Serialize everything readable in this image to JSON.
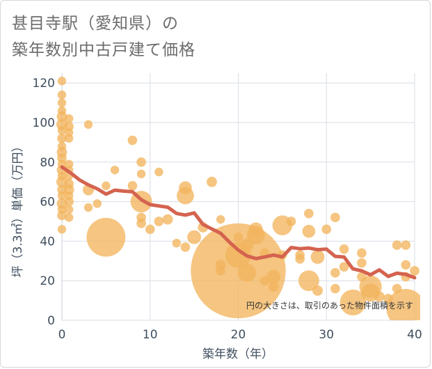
{
  "header": {
    "title_line1": "甚目寺駅（愛知県）の",
    "title_line2": "築年数別中古戸建て価格"
  },
  "note": "円の大きさは、取引のあった物件面積を示す",
  "colors": {
    "bubble": "#f2b55e",
    "trend": "#d4634f",
    "grid": "#d9dde6",
    "axis_text": "#3e4d5e",
    "title": "#6b6b6b"
  },
  "chart_data": {
    "type": "scatter",
    "xlabel": "築年数（年）",
    "ylabel": "坪（3.3㎡）単価（万円）",
    "xlim": [
      0,
      40
    ],
    "ylim": [
      0,
      125
    ],
    "xticks": [
      "0",
      "10",
      "20",
      "30",
      "40"
    ],
    "yticks": [
      "0",
      "20",
      "40",
      "60",
      "80",
      "100",
      "120"
    ],
    "grid": true,
    "points": [
      {
        "x": 0,
        "y": 121,
        "s": 1
      },
      {
        "x": 0,
        "y": 114,
        "s": 1
      },
      {
        "x": 0,
        "y": 110,
        "s": 1
      },
      {
        "x": 0,
        "y": 106,
        "s": 1
      },
      {
        "x": 0,
        "y": 103,
        "s": 1.2
      },
      {
        "x": 0,
        "y": 99,
        "s": 1.3
      },
      {
        "x": 0,
        "y": 96,
        "s": 1
      },
      {
        "x": 0,
        "y": 92,
        "s": 1.1
      },
      {
        "x": 0,
        "y": 88,
        "s": 1
      },
      {
        "x": 0,
        "y": 85,
        "s": 1.2
      },
      {
        "x": 0,
        "y": 82,
        "s": 1.1
      },
      {
        "x": 0,
        "y": 79,
        "s": 1
      },
      {
        "x": 0,
        "y": 76,
        "s": 1.2
      },
      {
        "x": 0,
        "y": 73,
        "s": 1
      },
      {
        "x": 0,
        "y": 70,
        "s": 1.3
      },
      {
        "x": 0,
        "y": 66,
        "s": 1.1
      },
      {
        "x": 0,
        "y": 63,
        "s": 1
      },
      {
        "x": 0,
        "y": 59,
        "s": 1.2
      },
      {
        "x": 0,
        "y": 56,
        "s": 1
      },
      {
        "x": 0,
        "y": 53,
        "s": 1.1
      },
      {
        "x": 0,
        "y": 46,
        "s": 1
      },
      {
        "x": 0.8,
        "y": 102,
        "s": 1
      },
      {
        "x": 0.8,
        "y": 98,
        "s": 1.1
      },
      {
        "x": 0.8,
        "y": 95,
        "s": 1
      },
      {
        "x": 0.8,
        "y": 92,
        "s": 1
      },
      {
        "x": 0.8,
        "y": 79,
        "s": 1
      },
      {
        "x": 0.8,
        "y": 76,
        "s": 1
      },
      {
        "x": 0.8,
        "y": 73,
        "s": 1
      },
      {
        "x": 0.8,
        "y": 69,
        "s": 1.1
      },
      {
        "x": 0.8,
        "y": 66,
        "s": 1.2
      },
      {
        "x": 0.8,
        "y": 63,
        "s": 1
      },
      {
        "x": 0.8,
        "y": 60,
        "s": 1.1
      },
      {
        "x": 0.8,
        "y": 56,
        "s": 1
      },
      {
        "x": 0.8,
        "y": 52,
        "s": 1
      },
      {
        "x": 3,
        "y": 99,
        "s": 1
      },
      {
        "x": 3,
        "y": 66,
        "s": 1.3
      },
      {
        "x": 3,
        "y": 57,
        "s": 1
      },
      {
        "x": 4,
        "y": 59,
        "s": 1
      },
      {
        "x": 5,
        "y": 68,
        "s": 1
      },
      {
        "x": 5,
        "y": 42,
        "s": 4.5
      },
      {
        "x": 6,
        "y": 76,
        "s": 1
      },
      {
        "x": 8,
        "y": 91,
        "s": 1.1
      },
      {
        "x": 8,
        "y": 68,
        "s": 1.1
      },
      {
        "x": 9,
        "y": 80,
        "s": 1.1
      },
      {
        "x": 9,
        "y": 74,
        "s": 1
      },
      {
        "x": 9,
        "y": 60,
        "s": 2.5
      },
      {
        "x": 9,
        "y": 52,
        "s": 1.1
      },
      {
        "x": 9,
        "y": 49,
        "s": 1.1
      },
      {
        "x": 10,
        "y": 46,
        "s": 1.1
      },
      {
        "x": 11,
        "y": 75,
        "s": 1
      },
      {
        "x": 11,
        "y": 50,
        "s": 1.1
      },
      {
        "x": 12,
        "y": 51,
        "s": 1.2
      },
      {
        "x": 13,
        "y": 39,
        "s": 1
      },
      {
        "x": 14,
        "y": 67,
        "s": 1.5
      },
      {
        "x": 14,
        "y": 63,
        "s": 2
      },
      {
        "x": 14,
        "y": 37,
        "s": 1.1
      },
      {
        "x": 15,
        "y": 42,
        "s": 1.6
      },
      {
        "x": 16,
        "y": 47,
        "s": 1.2
      },
      {
        "x": 17,
        "y": 70,
        "s": 1.2
      },
      {
        "x": 18,
        "y": 51,
        "s": 1
      },
      {
        "x": 18,
        "y": 28,
        "s": 1.2
      },
      {
        "x": 18,
        "y": 25,
        "s": 1.1
      },
      {
        "x": 20,
        "y": 42,
        "s": 1.1
      },
      {
        "x": 20,
        "y": 33,
        "s": 3
      },
      {
        "x": 20,
        "y": 25,
        "s": 11
      },
      {
        "x": 21,
        "y": 38,
        "s": 1.5
      },
      {
        "x": 21,
        "y": 24,
        "s": 2.1
      },
      {
        "x": 22,
        "y": 46,
        "s": 1.6
      },
      {
        "x": 22,
        "y": 43,
        "s": 2.1
      },
      {
        "x": 23,
        "y": 34,
        "s": 1.1
      },
      {
        "x": 23,
        "y": 20,
        "s": 1.1
      },
      {
        "x": 24,
        "y": 22,
        "s": 1.6
      },
      {
        "x": 24,
        "y": 17,
        "s": 1.2
      },
      {
        "x": 25,
        "y": 48,
        "s": 2.3
      },
      {
        "x": 25,
        "y": 33,
        "s": 1.1
      },
      {
        "x": 26,
        "y": 50,
        "s": 1.1
      },
      {
        "x": 27,
        "y": 33,
        "s": 1.1
      },
      {
        "x": 27,
        "y": 31,
        "s": 1.1
      },
      {
        "x": 28,
        "y": 54,
        "s": 1.1
      },
      {
        "x": 28,
        "y": 45,
        "s": 1.5
      },
      {
        "x": 28,
        "y": 20,
        "s": 2.4
      },
      {
        "x": 29,
        "y": 32,
        "s": 1.6
      },
      {
        "x": 29,
        "y": 15,
        "s": 1.2
      },
      {
        "x": 30,
        "y": 46,
        "s": 1.1
      },
      {
        "x": 31,
        "y": 52,
        "s": 1.1
      },
      {
        "x": 31,
        "y": 24,
        "s": 1.1
      },
      {
        "x": 31,
        "y": 16,
        "s": 1.1
      },
      {
        "x": 32,
        "y": 36,
        "s": 1.1
      },
      {
        "x": 32,
        "y": 27,
        "s": 1.1
      },
      {
        "x": 33,
        "y": 9,
        "s": 3
      },
      {
        "x": 34,
        "y": 34,
        "s": 1.1
      },
      {
        "x": 34,
        "y": 29,
        "s": 1.1
      },
      {
        "x": 34,
        "y": 22,
        "s": 1.1
      },
      {
        "x": 35,
        "y": 17,
        "s": 2.6
      },
      {
        "x": 35,
        "y": 14,
        "s": 2.1
      },
      {
        "x": 36,
        "y": 12,
        "s": 1.2
      },
      {
        "x": 37,
        "y": 11,
        "s": 1.1
      },
      {
        "x": 38,
        "y": 38,
        "s": 1.1
      },
      {
        "x": 38,
        "y": 16,
        "s": 1.1
      },
      {
        "x": 39,
        "y": 38,
        "s": 1.1
      },
      {
        "x": 39,
        "y": 28,
        "s": 1.1
      },
      {
        "x": 39,
        "y": 22,
        "s": 1.1
      },
      {
        "x": 39,
        "y": 6,
        "s": 4.5
      },
      {
        "x": 40,
        "y": 25,
        "s": 1.1
      }
    ],
    "trend": {
      "x": [
        0,
        1,
        2,
        3,
        4,
        5,
        6,
        7,
        8,
        9,
        10,
        11,
        12,
        13,
        14,
        15,
        16,
        17,
        18,
        19,
        20,
        21,
        22,
        23,
        24,
        25,
        26,
        27,
        28,
        29,
        30,
        31,
        32,
        33,
        34,
        35,
        36,
        37,
        38,
        39,
        40
      ],
      "y": [
        77.5,
        74.5,
        71,
        68.5,
        66.5,
        63.8,
        65.8,
        65.3,
        65,
        61,
        58.5,
        57.8,
        57.2,
        54,
        53.2,
        54.3,
        48.5,
        46.2,
        44,
        39.5,
        35.5,
        32.5,
        31.2,
        32,
        33,
        32,
        36.8,
        36.2,
        36.5,
        35.7,
        36,
        32.3,
        32,
        26,
        25,
        23,
        25.5,
        22.2,
        23.8,
        23.2,
        21.5
      ]
    }
  }
}
